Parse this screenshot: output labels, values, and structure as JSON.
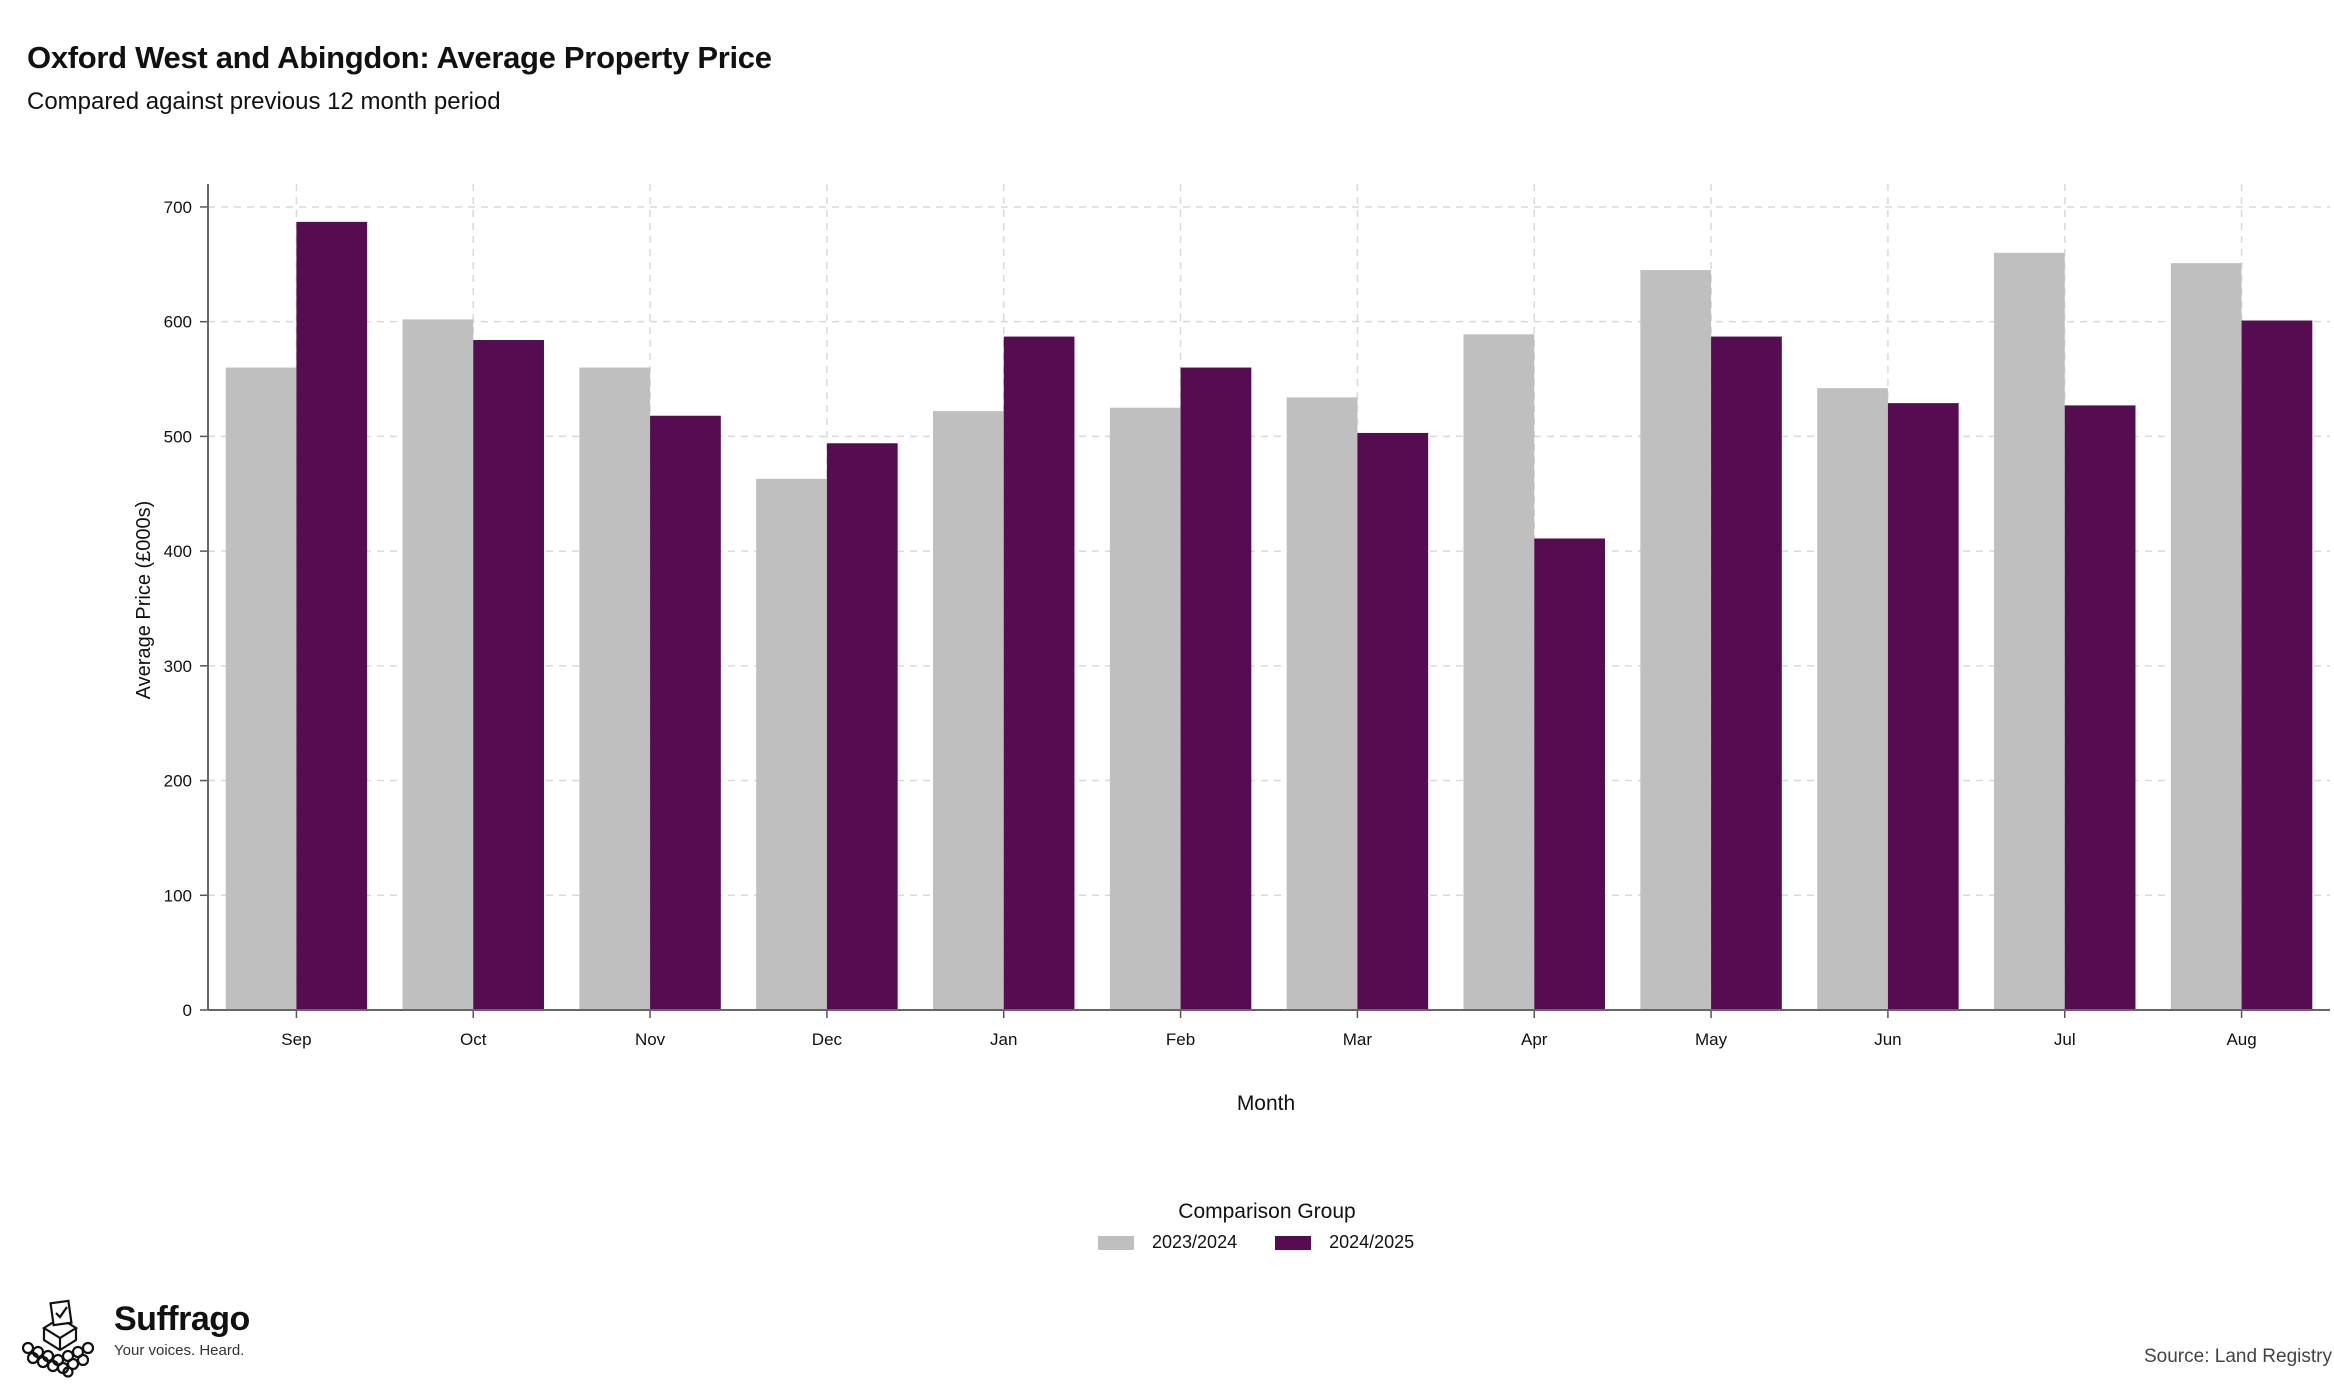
{
  "title": "Oxford West and Abingdon: Average Property Price",
  "subtitle": "Compared against previous 12 month period",
  "chart_data": {
    "type": "bar",
    "categories": [
      "Sep",
      "Oct",
      "Nov",
      "Dec",
      "Jan",
      "Feb",
      "Mar",
      "Apr",
      "May",
      "Jun",
      "Jul",
      "Aug"
    ],
    "series": [
      {
        "name": "2023/2024",
        "color": "#bfbfbf",
        "values": [
          560,
          602,
          560,
          463,
          522,
          525,
          534,
          589,
          645,
          542,
          660,
          651
        ]
      },
      {
        "name": "2024/2025",
        "color": "#560c51",
        "values": [
          687,
          584,
          518,
          494,
          587,
          560,
          503,
          411,
          587,
          529,
          527,
          601
        ]
      }
    ],
    "xlabel": "Month",
    "ylabel": "Average Price (£000s)",
    "ylim": [
      0,
      720
    ],
    "yticks": [
      0,
      100,
      200,
      300,
      400,
      500,
      600,
      700
    ],
    "grid": true,
    "legend_title": "Comparison Group",
    "legend_position": "bottom"
  },
  "branding": {
    "name": "Suffrago",
    "tagline": "Your voices. Heard."
  },
  "source": "Source: Land Registry"
}
